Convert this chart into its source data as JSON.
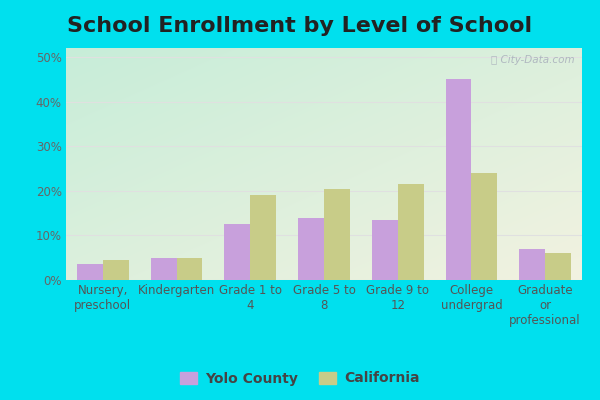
{
  "title": "School Enrollment by Level of School",
  "categories": [
    "Nursery,\npreschool",
    "Kindergarten",
    "Grade 1 to\n4",
    "Grade 5 to\n8",
    "Grade 9 to\n12",
    "College\nundergrad",
    "Graduate\nor\nprofessional"
  ],
  "yolo_county": [
    3.5,
    5.0,
    12.5,
    14.0,
    13.5,
    45.0,
    7.0
  ],
  "california": [
    4.5,
    5.0,
    19.0,
    20.5,
    21.5,
    24.0,
    6.0
  ],
  "yolo_color": "#c8a0dc",
  "california_color": "#c8cc88",
  "yolo_label": "Yolo County",
  "california_label": "California",
  "ylim": [
    0,
    52
  ],
  "yticks": [
    0,
    10,
    20,
    30,
    40,
    50
  ],
  "background_outer": "#00e0ee",
  "bg_top_left": "#c8edd8",
  "bg_bottom_right": "#f0f0dc",
  "grid_color": "#e0e0e0",
  "title_fontsize": 16,
  "tick_fontsize": 8.5,
  "legend_fontsize": 10,
  "watermark": "City-Data.com"
}
